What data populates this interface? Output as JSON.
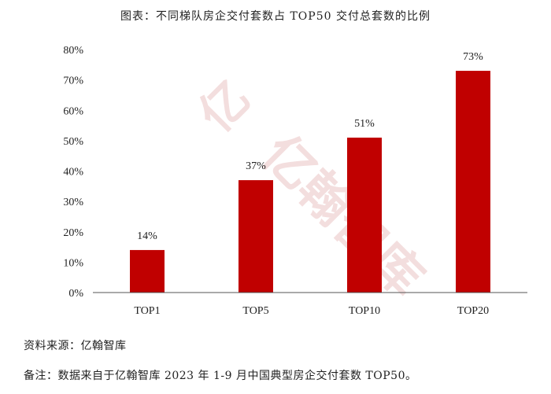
{
  "chart_data": {
    "type": "bar",
    "title": "图表：不同梯队房企交付套数占 TOP50 交付总套数的比例",
    "categories": [
      "TOP1",
      "TOP5",
      "TOP10",
      "TOP20"
    ],
    "values": [
      14,
      37,
      51,
      73
    ],
    "data_labels": [
      "14%",
      "37%",
      "51%",
      "73%"
    ],
    "y_ticks": [
      "0%",
      "10%",
      "20%",
      "30%",
      "40%",
      "50%",
      "60%",
      "70%",
      "80%"
    ],
    "ylim": [
      0,
      80
    ],
    "xlabel": "",
    "ylabel": "",
    "grid": false,
    "bar_color": "#c00000"
  },
  "watermark": "亿翰智库",
  "source": "资料来源：亿翰智库",
  "remark": "备注：数据来自于亿翰智库 2023 年 1-9 月中国典型房企交付套数 TOP50。"
}
